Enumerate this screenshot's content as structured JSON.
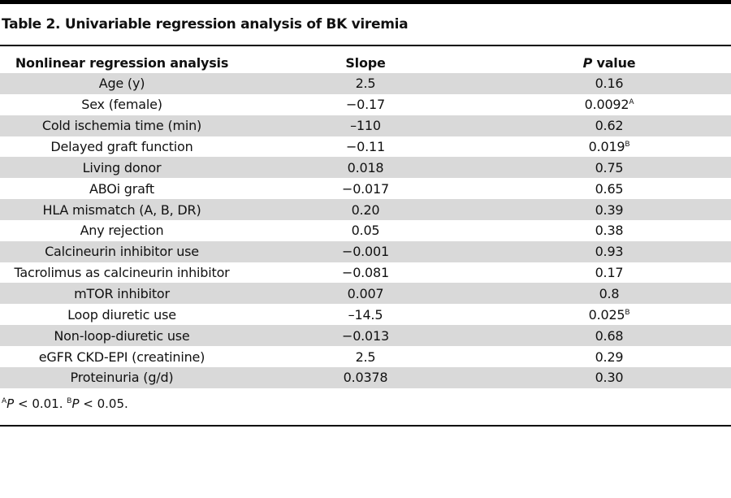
{
  "title": "Table 2. Univariable regression analysis of BK viremia",
  "table": {
    "header": [
      "Nonlinear regression analysis",
      "Slope",
      {
        "italic": "P",
        "text": " value"
      }
    ],
    "rows": [
      {
        "label": "Age (y)",
        "slope": "2.5",
        "p": "0.16"
      },
      {
        "label": "Sex (female)",
        "slope": "−0.17",
        "p": "0.0092",
        "note": "A"
      },
      {
        "label": "Cold ischemia time (min)",
        "slope": "–110",
        "p": "0.62"
      },
      {
        "label": "Delayed graft function",
        "slope": "−0.11",
        "p": "0.019",
        "note": "B"
      },
      {
        "label": "Living donor",
        "slope": "0.018",
        "p": "0.75"
      },
      {
        "label": "ABOi graft",
        "slope": "−0.017",
        "p": "0.65"
      },
      {
        "label": "HLA mismatch (A, B, DR)",
        "slope": "0.20",
        "p": "0.39"
      },
      {
        "label": "Any rejection",
        "slope": "0.05",
        "p": "0.38"
      },
      {
        "label": "Calcineurin inhibitor use",
        "slope": "−0.001",
        "p": "0.93"
      },
      {
        "label": "Tacrolimus as calcineurin inhibitor",
        "slope": "−0.081",
        "p": "0.17"
      },
      {
        "label": "mTOR inhibitor",
        "slope": "0.007",
        "p": "0.8"
      },
      {
        "label": "Loop diuretic use",
        "slope": "–14.5",
        "p": "0.025",
        "note": "B"
      },
      {
        "label": "Non-loop-diuretic use",
        "slope": "−0.013",
        "p": "0.68"
      },
      {
        "label": "eGFR CKD-EPI (creatinine)",
        "slope": "2.5",
        "p": "0.29"
      },
      {
        "label": "Proteinuria (g/d)",
        "slope": "0.0378",
        "p": "0.30"
      }
    ]
  },
  "footnotes": [
    {
      "mark": "A",
      "italic": "P",
      "text": " < 0.01."
    },
    {
      "mark": "B",
      "italic": "P",
      "text": " < 0.05."
    }
  ]
}
